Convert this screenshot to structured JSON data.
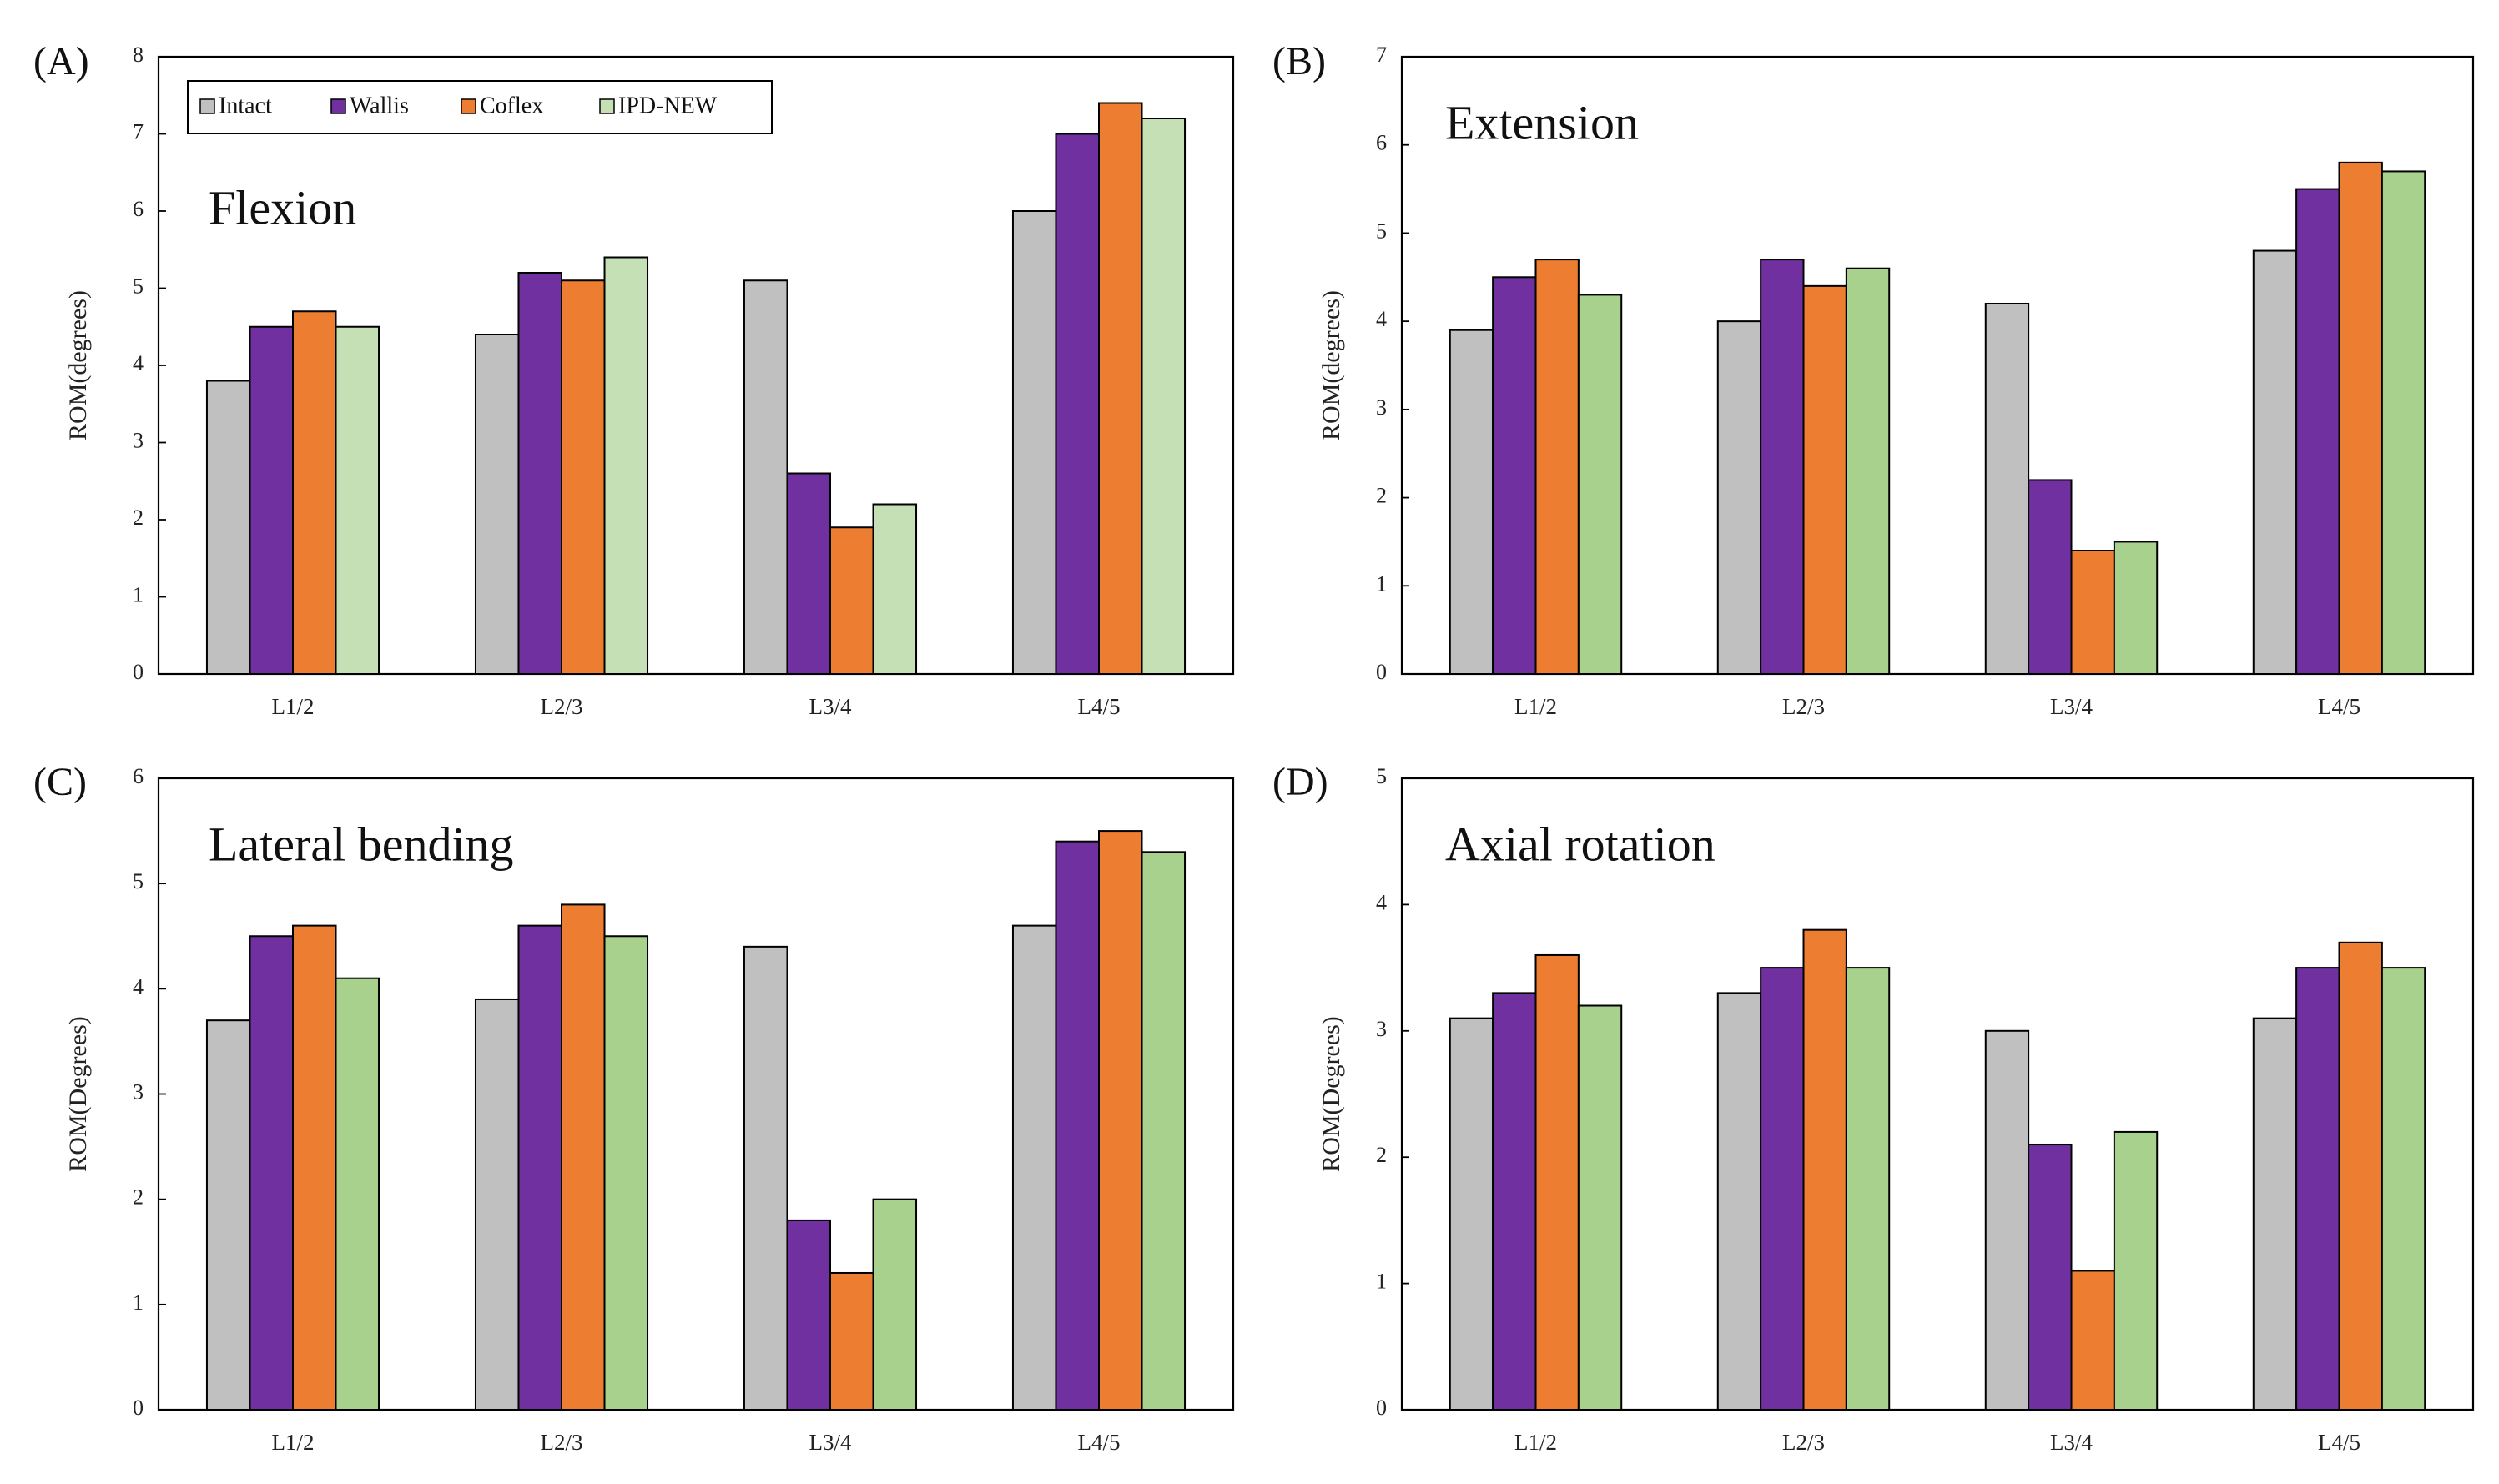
{
  "colors": {
    "Intact": "#c0c0c0",
    "Wallis": "#7030a0",
    "Coflex": "#ed7d31",
    "IPD-NEW": "#a9d18e",
    "IPD-NEW-light": "#c5e0b4"
  },
  "legend": [
    "Intact",
    "Wallis",
    "Coflex",
    "IPD-NEW"
  ],
  "chart_data": [
    {
      "type": "bar",
      "panel": "(A)",
      "title": "Flexion",
      "ylabel": "ROM(degrees)",
      "ylim": [
        0,
        8
      ],
      "yticks": [
        "0",
        "1",
        "2",
        "3",
        "4",
        "5",
        "6",
        "7",
        "8"
      ],
      "categories": [
        "L1/2",
        "L2/3",
        "L3/4",
        "L4/5"
      ],
      "series": [
        {
          "name": "Intact",
          "values": [
            3.8,
            4.4,
            5.1,
            6.0
          ]
        },
        {
          "name": "Wallis",
          "values": [
            4.5,
            5.2,
            2.6,
            7.0
          ]
        },
        {
          "name": "Coflex",
          "values": [
            4.7,
            5.1,
            1.9,
            7.4
          ]
        },
        {
          "name": "IPD-NEW",
          "values": [
            4.5,
            5.4,
            2.2,
            7.2
          ]
        }
      ],
      "legend": "top-left"
    },
    {
      "type": "bar",
      "panel": "(B)",
      "title": "Extension",
      "ylabel": "ROM(degrees)",
      "ylim": [
        0,
        7
      ],
      "yticks": [
        "0",
        "1",
        "2",
        "3",
        "4",
        "5",
        "6",
        "7"
      ],
      "categories": [
        "L1/2",
        "L2/3",
        "L3/4",
        "L4/5"
      ],
      "series": [
        {
          "name": "Intact",
          "values": [
            3.9,
            4.0,
            4.2,
            4.8
          ]
        },
        {
          "name": "Wallis",
          "values": [
            4.5,
            4.7,
            2.2,
            5.5
          ]
        },
        {
          "name": "Coflex",
          "values": [
            4.7,
            4.4,
            1.4,
            5.8
          ]
        },
        {
          "name": "IPD-NEW",
          "values": [
            4.3,
            4.6,
            1.5,
            5.7
          ]
        }
      ]
    },
    {
      "type": "bar",
      "panel": "(C)",
      "title": "Lateral bending",
      "ylabel": "ROM(Degrees)",
      "ylim": [
        0,
        6
      ],
      "yticks": [
        "0",
        "1",
        "2",
        "3",
        "4",
        "5",
        "6"
      ],
      "categories": [
        "L1/2",
        "L2/3",
        "L3/4",
        "L4/5"
      ],
      "series": [
        {
          "name": "Intact",
          "values": [
            3.7,
            3.9,
            4.4,
            4.6
          ]
        },
        {
          "name": "Wallis",
          "values": [
            4.5,
            4.6,
            1.8,
            5.4
          ]
        },
        {
          "name": "Coflex",
          "values": [
            4.6,
            4.8,
            1.3,
            5.5
          ]
        },
        {
          "name": "IPD-NEW",
          "values": [
            4.1,
            4.5,
            2.0,
            5.3
          ]
        }
      ]
    },
    {
      "type": "bar",
      "panel": "(D)",
      "title": "Axial rotation",
      "ylabel": "ROM(Degrees)",
      "ylim": [
        0,
        5
      ],
      "yticks": [
        "0",
        "1",
        "2",
        "3",
        "4",
        "5"
      ],
      "categories": [
        "L1/2",
        "L2/3",
        "L3/4",
        "L4/5"
      ],
      "series": [
        {
          "name": "Intact",
          "values": [
            3.1,
            3.3,
            3.0,
            3.1
          ]
        },
        {
          "name": "Wallis",
          "values": [
            3.3,
            3.5,
            2.1,
            3.5
          ]
        },
        {
          "name": "Coflex",
          "values": [
            3.6,
            3.8,
            1.1,
            3.7
          ]
        },
        {
          "name": "IPD-NEW",
          "values": [
            3.2,
            3.5,
            2.2,
            3.5
          ]
        }
      ]
    }
  ]
}
